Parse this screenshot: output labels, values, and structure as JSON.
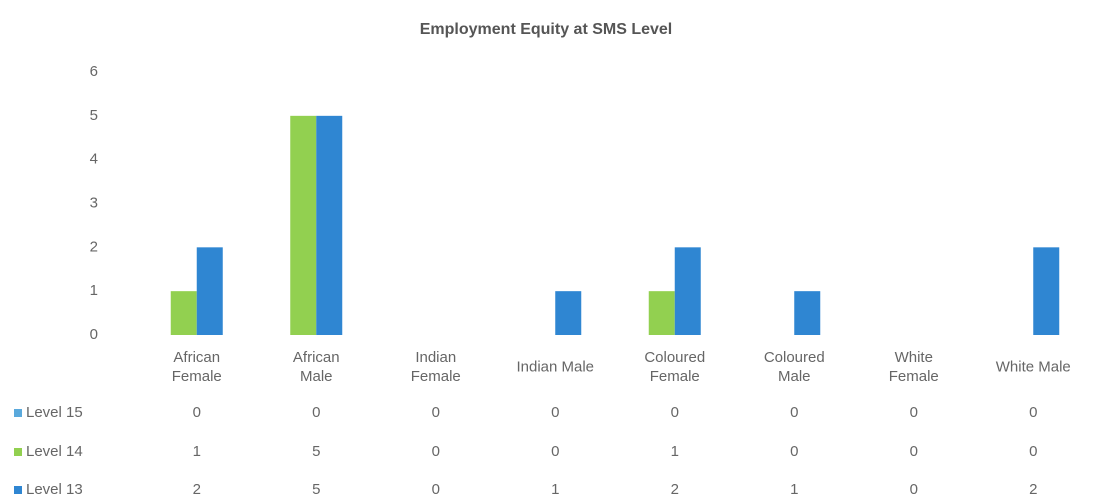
{
  "chart_data": {
    "type": "bar",
    "title": "Employment Equity at SMS Level",
    "categories": [
      "African Female",
      "African Male",
      "Indian Female",
      "Indian Male",
      "Coloured Female",
      "Coloured Male",
      "White Female",
      "White Male"
    ],
    "series": [
      {
        "name": "Level 15",
        "color": "#5aa9dc",
        "values": [
          0,
          0,
          0,
          0,
          0,
          0,
          0,
          0
        ]
      },
      {
        "name": "Level 14",
        "color": "#92d050",
        "values": [
          1,
          5,
          0,
          0,
          1,
          0,
          0,
          0
        ]
      },
      {
        "name": "Level 13",
        "color": "#2f86d2",
        "values": [
          2,
          5,
          0,
          1,
          2,
          1,
          0,
          2
        ]
      }
    ],
    "ylim": [
      0,
      6
    ],
    "yticks": [
      0,
      1,
      2,
      3,
      4,
      5,
      6
    ],
    "grid": false,
    "data_table": true
  }
}
